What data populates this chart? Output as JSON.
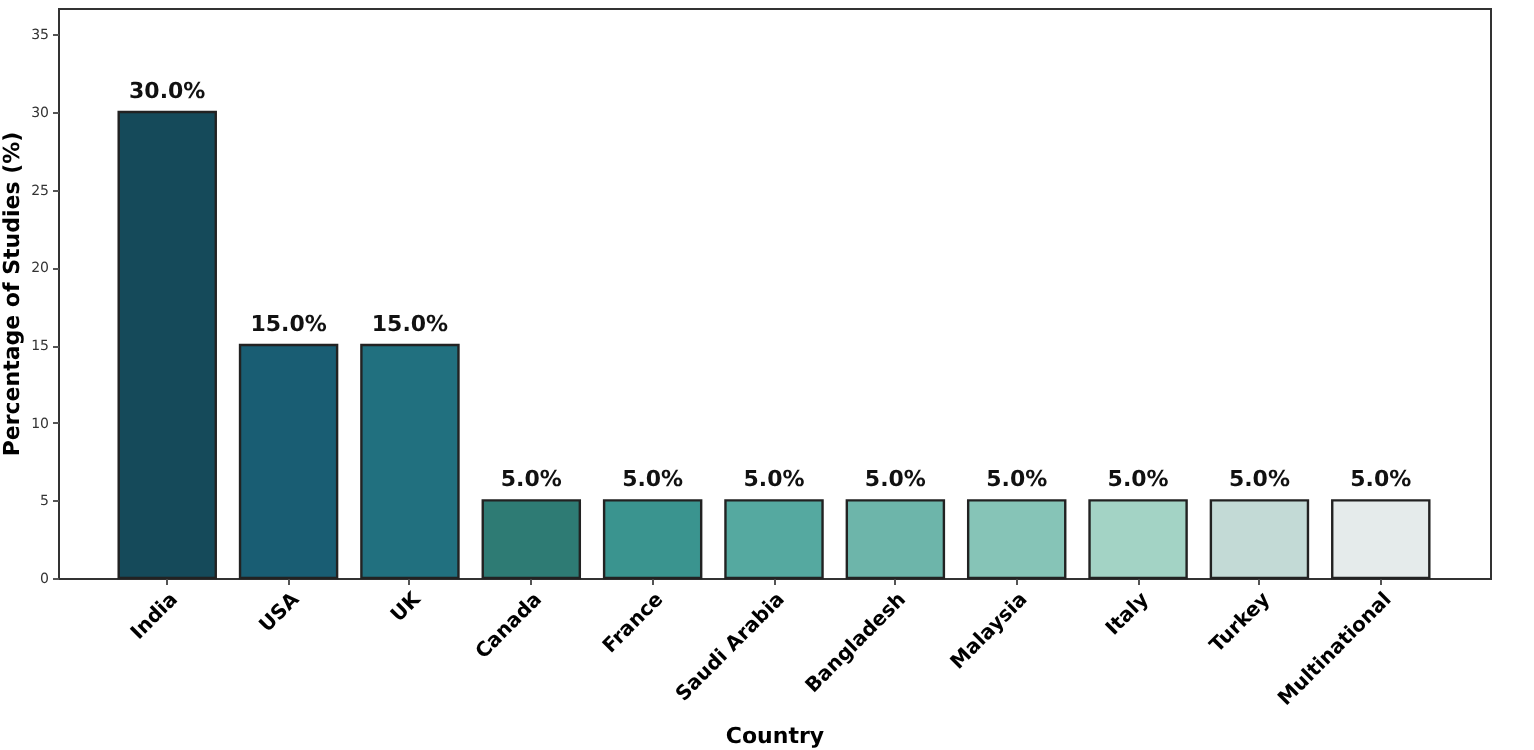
{
  "chart_data": {
    "type": "bar",
    "xlabel": "Country",
    "ylabel": "Percentage of Studies (%)",
    "categories": [
      "India",
      "USA",
      "UK",
      "Canada",
      "France",
      "Saudi Arabia",
      "Bangladesh",
      "Malaysia",
      "Italy",
      "Turkey",
      "Multinational"
    ],
    "values": [
      30,
      15,
      15,
      5,
      5,
      5,
      5,
      5,
      5,
      5,
      5
    ],
    "colors": [
      "#154a5a",
      "#195d73",
      "#21707f",
      "#2e7b74",
      "#3a948f",
      "#55a9a0",
      "#6db5aa",
      "#86c4b7",
      "#a3d3c5",
      "#c3dad6",
      "#e5ebeb"
    ],
    "value_labels": [
      "30.0%",
      "15.0%",
      "15.0%",
      "5.0%",
      "5.0%",
      "5.0%",
      "5.0%",
      "5.0%",
      "5.0%",
      "5.0%",
      "5.0%"
    ],
    "ylim": [
      0,
      36.7
    ],
    "yticks": [
      0,
      5,
      10,
      15,
      20,
      25,
      30,
      35
    ],
    "grid": false
  }
}
